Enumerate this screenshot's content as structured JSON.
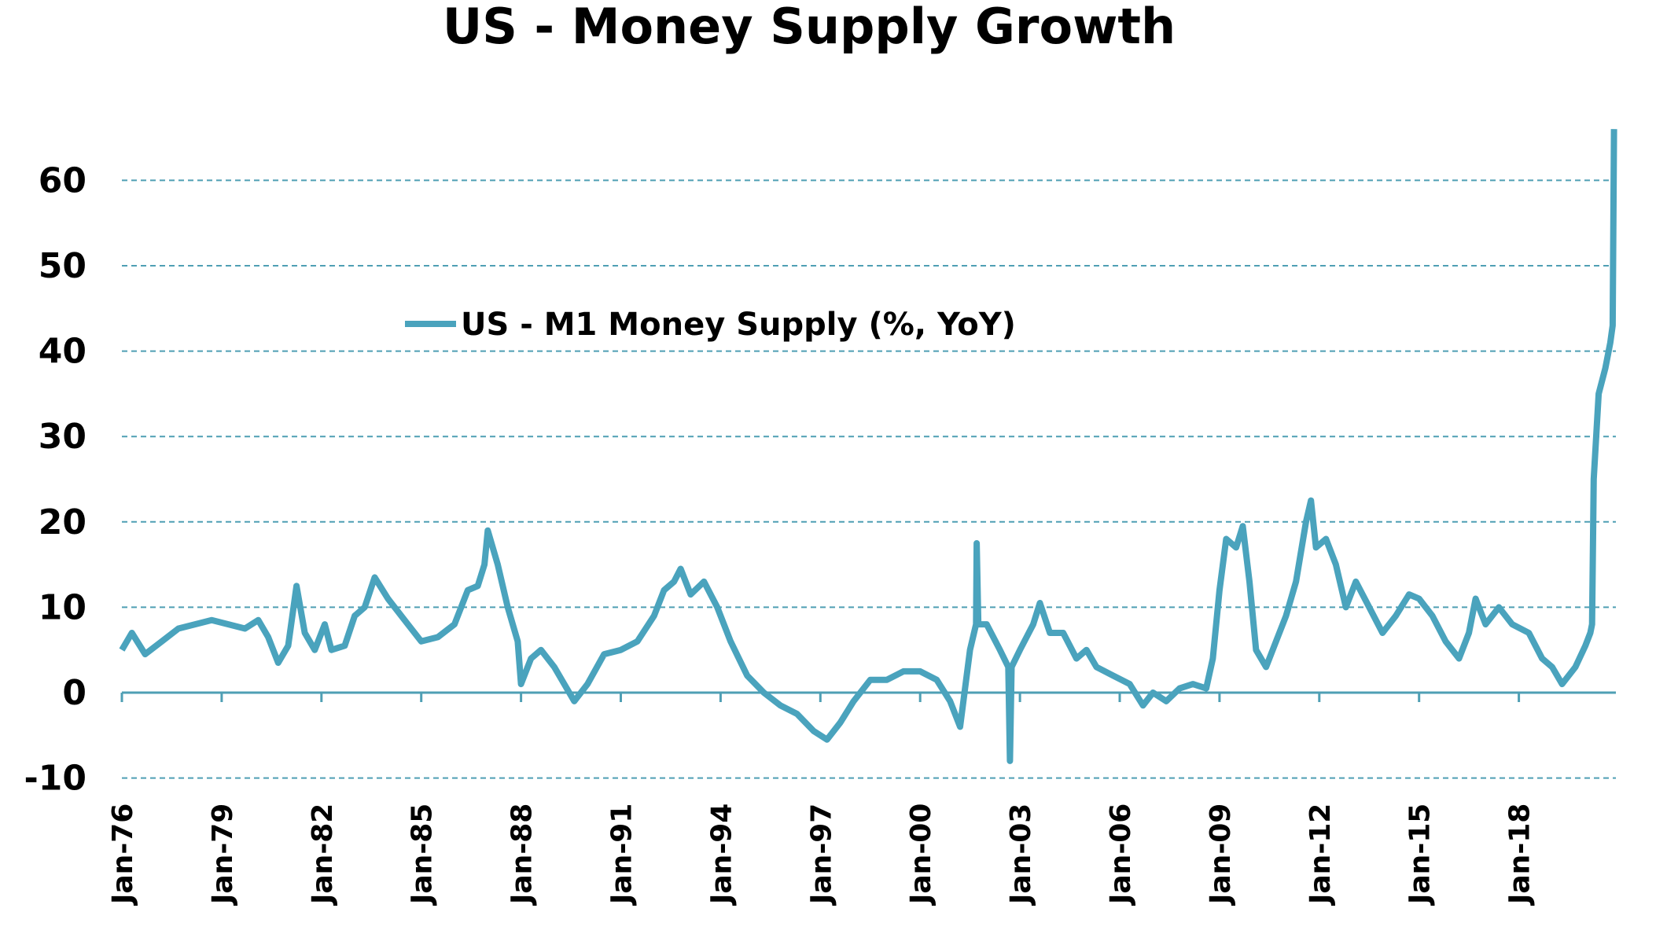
{
  "chart_data": {
    "type": "line",
    "title": "US - Money Supply Growth",
    "xlabel": "",
    "ylabel": "",
    "ylim": [
      -10,
      60
    ],
    "yticks": [
      -10,
      0,
      10,
      20,
      30,
      40,
      50,
      60
    ],
    "xlim": [
      1976.0,
      2020.9
    ],
    "xticks": [
      {
        "label": "Jan-76",
        "year": 1976
      },
      {
        "label": "Jan-79",
        "year": 1979
      },
      {
        "label": "Jan-82",
        "year": 1982
      },
      {
        "label": "Jan-85",
        "year": 1985
      },
      {
        "label": "Jan-88",
        "year": 1988
      },
      {
        "label": "Jan-91",
        "year": 1991
      },
      {
        "label": "Jan-94",
        "year": 1994
      },
      {
        "label": "Jan-97",
        "year": 1997
      },
      {
        "label": "Jan-00",
        "year": 2000
      },
      {
        "label": "Jan-03",
        "year": 2003
      },
      {
        "label": "Jan-06",
        "year": 2006
      },
      {
        "label": "Jan-09",
        "year": 2009
      },
      {
        "label": "Jan-12",
        "year": 2012
      },
      {
        "label": "Jan-15",
        "year": 2015
      },
      {
        "label": "Jan-18",
        "year": 2018
      }
    ],
    "grid": "horizontal dashed",
    "legend_position": "top-left (inside plot)",
    "series": [
      {
        "name": "US - M1 Money Supply (%, YoY)",
        "color": "#4aa3bd",
        "x": [
          1976.0,
          1976.3,
          1976.7,
          1977.2,
          1977.7,
          1978.2,
          1978.7,
          1979.2,
          1979.7,
          1980.1,
          1980.4,
          1980.7,
          1981.0,
          1981.25,
          1981.5,
          1981.8,
          1982.1,
          1982.3,
          1982.7,
          1983.0,
          1983.3,
          1983.6,
          1984.0,
          1984.5,
          1985.0,
          1985.5,
          1986.0,
          1986.4,
          1986.7,
          1986.9,
          1987.0,
          1987.3,
          1987.6,
          1987.9,
          1988.0,
          1988.3,
          1988.6,
          1989.0,
          1989.3,
          1989.6,
          1990.0,
          1990.5,
          1991.0,
          1991.5,
          1992.0,
          1992.3,
          1992.6,
          1992.8,
          1993.1,
          1993.5,
          1993.9,
          1994.3,
          1994.8,
          1995.3,
          1995.8,
          1996.3,
          1996.8,
          1997.2,
          1997.6,
          1998.0,
          1998.5,
          1999.0,
          1999.5,
          2000.0,
          2000.5,
          2000.9,
          2001.2,
          2001.5,
          2001.68,
          2001.7,
          2001.75,
          2002.0,
          2002.4,
          2002.65,
          2002.7,
          2002.75,
          2003.0,
          2003.4,
          2003.6,
          2003.9,
          2004.3,
          2004.7,
          2005.0,
          2005.3,
          2005.8,
          2006.3,
          2006.7,
          2007.0,
          2007.4,
          2007.8,
          2008.2,
          2008.6,
          2008.8,
          2009.0,
          2009.2,
          2009.5,
          2009.7,
          2009.9,
          2010.1,
          2010.4,
          2010.7,
          2011.0,
          2011.3,
          2011.6,
          2011.75,
          2011.9,
          2012.2,
          2012.5,
          2012.8,
          2013.1,
          2013.5,
          2013.9,
          2014.3,
          2014.7,
          2015.0,
          2015.4,
          2015.8,
          2016.2,
          2016.5,
          2016.7,
          2017.0,
          2017.4,
          2017.8,
          2018.3,
          2018.7,
          2019.0,
          2019.3,
          2019.7,
          2020.0,
          2020.15,
          2020.2,
          2020.25,
          2020.4,
          2020.6,
          2020.75,
          2020.82,
          2020.86
        ],
        "values": [
          5,
          7,
          4.5,
          6,
          7.5,
          8,
          8.5,
          8,
          7.5,
          8.5,
          6.5,
          3.5,
          5.5,
          12.5,
          7,
          5,
          8,
          5,
          5.5,
          9,
          10,
          13.5,
          11,
          8.5,
          6,
          6.5,
          8,
          12,
          12.5,
          15,
          19,
          15,
          10,
          6,
          1,
          4,
          5,
          3,
          1,
          -1,
          1,
          4.5,
          5,
          6,
          9,
          12,
          13,
          14.5,
          11.5,
          13,
          10,
          6,
          2,
          0,
          -1.5,
          -2.5,
          -4.5,
          -5.5,
          -3.5,
          -1,
          1.5,
          1.5,
          2.5,
          2.5,
          1.5,
          -1,
          -4,
          5,
          8,
          17.5,
          8,
          8,
          5,
          3,
          -8,
          3,
          5,
          8,
          10.5,
          7,
          7,
          4,
          5,
          3,
          2,
          1,
          -1.5,
          0,
          -1,
          0.5,
          1,
          0.5,
          4,
          12,
          18,
          17,
          19.5,
          13,
          5,
          3,
          6,
          9,
          13,
          20,
          22.5,
          17,
          18,
          15,
          10,
          13,
          10,
          7,
          9,
          11.5,
          11,
          9,
          6,
          4,
          7,
          11,
          8,
          10,
          8,
          7,
          4,
          3,
          1,
          3,
          5.5,
          7,
          8,
          25,
          35,
          38,
          41,
          43,
          66
        ]
      }
    ]
  }
}
